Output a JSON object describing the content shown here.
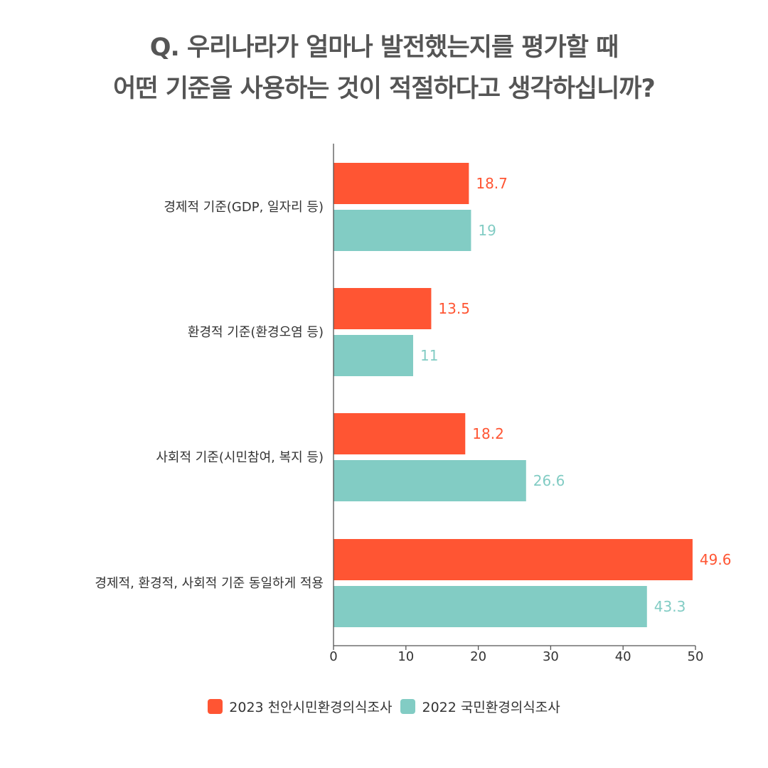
{
  "title": {
    "line1": "Q. 우리나라가 얼마나 발전했는지를 평가할 때",
    "line2": "어떤 기준을 사용하는 것이 적절하다고 생각하십니까?"
  },
  "colors": {
    "series_2023": "#ff5533",
    "series_2022": "#82ccc4",
    "axis": "#555555",
    "text": "#333333"
  },
  "chart_data": {
    "type": "bar",
    "orientation": "horizontal",
    "categories": [
      "경제적 기준(GDP, 일자리 등)",
      "환경적 기준(환경오염 등)",
      "사회적 기준(시민참여, 복지 등)",
      "경제적, 환경적, 사회적 기준 동일하게 적용"
    ],
    "series": [
      {
        "name": "2023 천안시민환경의식조사",
        "values": [
          18.7,
          13.5,
          18.2,
          49.6
        ],
        "labels": [
          "18.7",
          "13.5",
          "18.2",
          "49.6"
        ]
      },
      {
        "name": "2022 국민환경의식조사",
        "values": [
          19,
          11,
          26.6,
          43.3
        ],
        "labels": [
          "19",
          "11",
          "26.6",
          "43.3"
        ]
      }
    ],
    "xlim": [
      0,
      50
    ],
    "xticks": [
      "0",
      "10",
      "20",
      "30",
      "40",
      "50"
    ],
    "grid": false,
    "legend_position": "bottom-center"
  },
  "legend": {
    "items": [
      {
        "label": "2023 천안시민환경의식조사",
        "color": "#ff5533"
      },
      {
        "label": "2022 국민환경의식조사",
        "color": "#82ccc4"
      }
    ]
  }
}
